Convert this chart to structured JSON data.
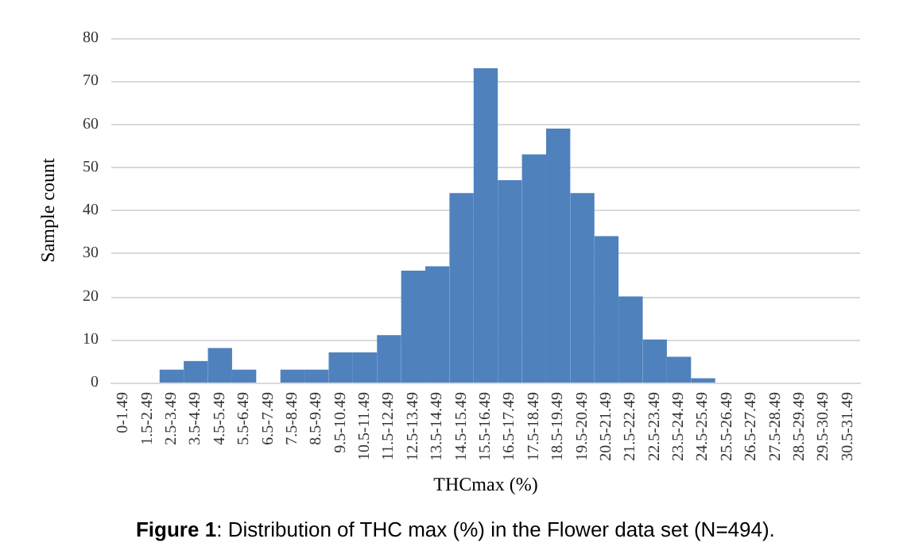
{
  "chart_data": {
    "type": "bar",
    "title": "Figure 1: Distribution of THC max (%) in the Flower data set (N=494).",
    "xlabel": "THCmax (%)",
    "ylabel": "Sample count",
    "categories": [
      "0-1.49",
      "1.5-2.49",
      "2.5-3.49",
      "3.5-4.49",
      "4.5-5.49",
      "5.5-6.49",
      "6.5-7.49",
      "7.5-8.49",
      "8.5-9.49",
      "9.5-10.49",
      "10.5-11.49",
      "11.5-12.49",
      "12.5-13.49",
      "13.5-14.49",
      "14.5-15.49",
      "15.5-16.49",
      "16.5-17.49",
      "17.5-18.49",
      "18.5-19.49",
      "19.5-20.49",
      "20.5-21.49",
      "21.5-22.49",
      "22.5-23.49",
      "23.5-24.49",
      "24.5-25.49",
      "25.5-26.49",
      "26.5-27.49",
      "27.5-28.49",
      "28.5-29.49",
      "29.5-30.49",
      "30.5-31.49"
    ],
    "values": [
      0,
      0,
      3,
      5,
      8,
      3,
      0,
      3,
      3,
      7,
      7,
      11,
      26,
      27,
      44,
      73,
      47,
      53,
      59,
      44,
      34,
      20,
      10,
      6,
      1,
      0,
      0,
      0,
      0,
      0,
      0
    ],
    "color": "#4f81bd",
    "ylim": [
      0,
      80
    ],
    "yticks": [
      0,
      10,
      20,
      30,
      40,
      50,
      60,
      70,
      80
    ],
    "grid": "y"
  }
}
